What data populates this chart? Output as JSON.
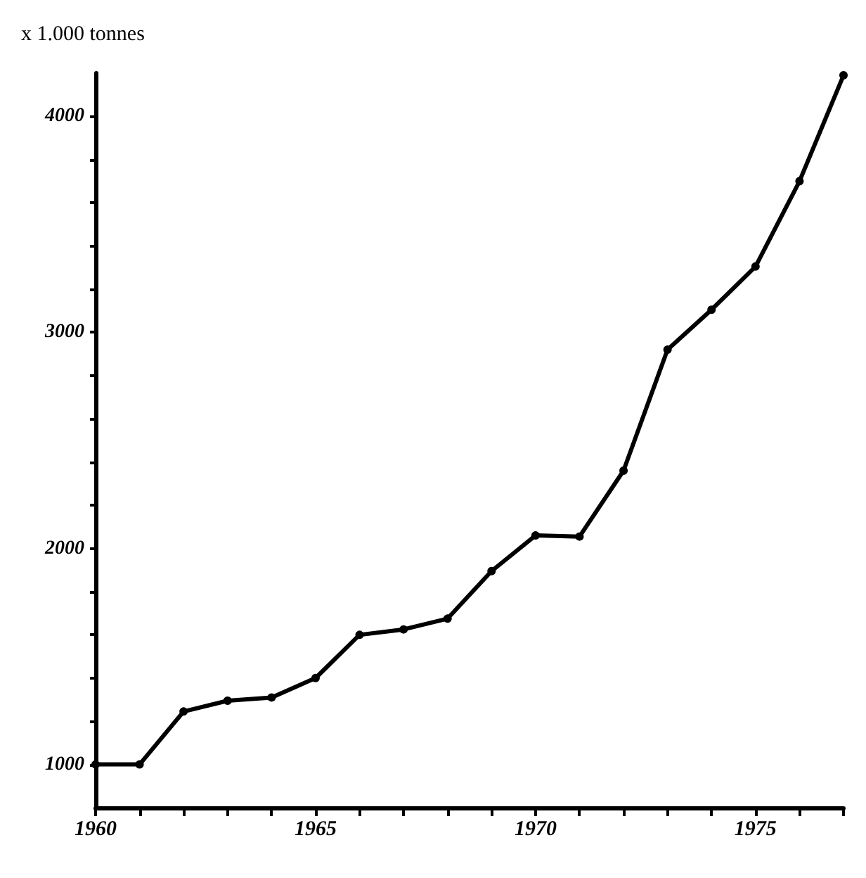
{
  "chart_data": {
    "type": "line",
    "ylabel": "x 1.000 tonnes",
    "x": [
      1960,
      1961,
      1962,
      1963,
      1964,
      1965,
      1966,
      1967,
      1968,
      1969,
      1970,
      1971,
      1972,
      1973,
      1974,
      1975,
      1976,
      1977
    ],
    "values": [
      1000,
      1000,
      1245,
      1295,
      1310,
      1400,
      1600,
      1625,
      1675,
      1895,
      2060,
      2055,
      2360,
      2920,
      3105,
      3305,
      3700,
      4190
    ],
    "color": "#000000",
    "marker": "circle",
    "line_style": "solid",
    "grid": false,
    "xlim": [
      1960,
      1977
    ],
    "xticks": [
      1960,
      {
        "value": 1961,
        "label": null
      },
      {
        "value": 1962,
        "label": null
      },
      {
        "value": 1963,
        "label": null
      },
      {
        "value": 1964,
        "label": null
      },
      1965,
      {
        "value": 1966,
        "label": null
      },
      {
        "value": 1967,
        "label": null
      },
      {
        "value": 1968,
        "label": null
      },
      {
        "value": 1969,
        "label": null
      },
      1970,
      {
        "value": 1971,
        "label": null
      },
      {
        "value": 1972,
        "label": null
      },
      {
        "value": 1973,
        "label": null
      },
      {
        "value": 1974,
        "label": null
      },
      1975,
      {
        "value": 1976,
        "label": null
      },
      {
        "value": 1977,
        "label": null
      }
    ],
    "ylim": [
      800,
      4200
    ],
    "yticks": [
      1000,
      {
        "value": 1200,
        "label": null
      },
      {
        "value": 1400,
        "label": null
      },
      {
        "value": 1600,
        "label": null
      },
      {
        "value": 1800,
        "label": null
      },
      2000,
      {
        "value": 2200,
        "label": null
      },
      {
        "value": 2400,
        "label": null
      },
      {
        "value": 2600,
        "label": null
      },
      {
        "value": 2800,
        "label": null
      },
      3000,
      {
        "value": 3200,
        "label": null
      },
      {
        "value": 3400,
        "label": null
      },
      {
        "value": 3600,
        "label": null
      },
      {
        "value": 3800,
        "label": null
      },
      4000
    ]
  }
}
